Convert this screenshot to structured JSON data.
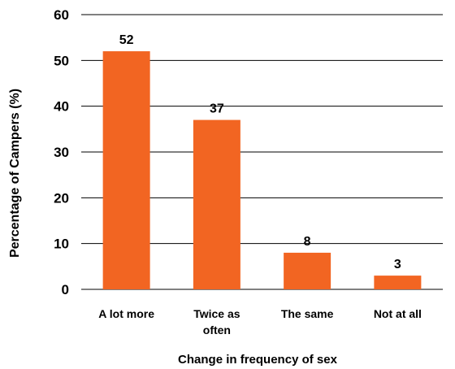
{
  "chart_data": {
    "type": "bar",
    "categories": [
      [
        "A lot more"
      ],
      [
        "Twice as",
        "often"
      ],
      [
        "The same"
      ],
      [
        "Not at all"
      ]
    ],
    "values": [
      52,
      37,
      8,
      3
    ],
    "data_labels": [
      "52",
      "37",
      "8",
      "3"
    ],
    "xlabel": "Change in frequency of sex",
    "ylabel": "Percentage of Campers (%)",
    "ylim": [
      0,
      60
    ],
    "yticks": [
      "0",
      "10",
      "20",
      "30",
      "40",
      "50",
      "60"
    ],
    "grid": true,
    "bar_color": "#F26522"
  }
}
